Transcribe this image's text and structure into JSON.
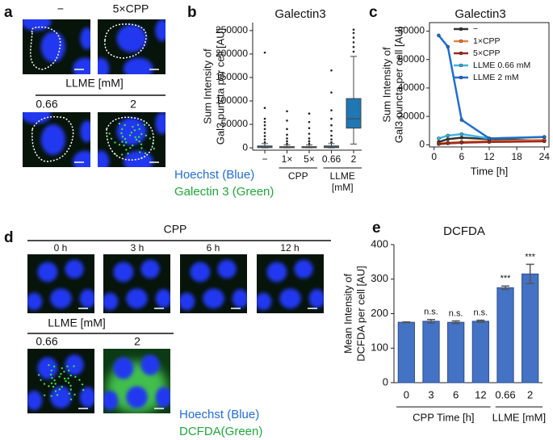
{
  "panel_a": {
    "letter": "a",
    "labels": [
      "−",
      "5×CPP"
    ],
    "group": "LLME [mM]",
    "sublabels": [
      "0.66",
      "2"
    ],
    "legend": [
      "Hoechst (Blue)",
      "Galectin 3 (Green)"
    ]
  },
  "panel_d": {
    "letter": "d",
    "group_top": "CPP",
    "labels": [
      "0 h",
      "3 h",
      "6 h",
      "12 h"
    ],
    "group": "LLME [mM]",
    "sublabels": [
      "0.66",
      "2"
    ],
    "legend": [
      "Hoechst (Blue)",
      "DCFDA(Green)"
    ]
  },
  "chart_data": [
    {
      "type": "box",
      "panel": "b",
      "title": "Galectin3",
      "ylabel": [
        "Sum Intensity of",
        "Gal3 puncta per cell [AU]"
      ],
      "categories": [
        "−",
        "1×",
        "5×",
        "0.66",
        "2"
      ],
      "group_labels": [
        "CPP",
        "LLME",
        "[mM]"
      ],
      "color": "#1f77b4",
      "boxes": [
        {
          "whislo": 0,
          "q1": 500,
          "med": 1500,
          "q3": 4000,
          "whishi": 9000,
          "fliers": [
            12000,
            18000,
            25000,
            32000,
            40000,
            48000,
            55000,
            62000,
            85000,
            203000
          ]
        },
        {
          "whislo": 0,
          "q1": 300,
          "med": 800,
          "q3": 2500,
          "whishi": 6000,
          "fliers": [
            9000,
            14000,
            20000,
            28000,
            40000,
            58000,
            78000
          ]
        },
        {
          "whislo": 0,
          "q1": 300,
          "med": 800,
          "q3": 2500,
          "whishi": 6000,
          "fliers": [
            9000,
            14000,
            20000,
            30000,
            42000,
            55000,
            73000
          ]
        },
        {
          "whislo": 0,
          "q1": 500,
          "med": 1500,
          "q3": 4000,
          "whishi": 9000,
          "fliers": [
            12000,
            18000,
            26000,
            36000,
            48000,
            62000,
            80000,
            118000,
            165000
          ]
        },
        {
          "whislo": 8000,
          "q1": 42000,
          "med": 62000,
          "q3": 105000,
          "whishi": 195000,
          "fliers": [
            205000,
            215000,
            225000,
            235000,
            245000,
            252000
          ]
        }
      ],
      "ylim": [
        -5000,
        267000
      ],
      "yticks": [
        0,
        50000,
        100000,
        150000,
        200000,
        250000
      ]
    },
    {
      "type": "line",
      "panel": "c",
      "title": "Galectin3",
      "ylabel": [
        "Sum Intensity of",
        "Gal3 puncta per cell [AU]"
      ],
      "xlabel": "Time [h]",
      "x": [
        1,
        3,
        6,
        12,
        24
      ],
      "series": [
        {
          "name": "−",
          "color": "#333333",
          "values": [
            2000,
            4000,
            5000,
            4000,
            3000
          ]
        },
        {
          "name": "1×CPP",
          "color": "#e8833a",
          "values": [
            1000,
            1500,
            2000,
            2500,
            3500
          ]
        },
        {
          "name": "5×CPP",
          "color": "#a0281e",
          "values": [
            500,
            1000,
            1500,
            2000,
            2500
          ]
        },
        {
          "name": "LLME 0.66 mM",
          "color": "#3cb4e6",
          "values": [
            4500,
            6500,
            7500,
            4500,
            5500
          ]
        },
        {
          "name": "LLME 2 mM",
          "color": "#1f6fd0",
          "values": [
            77000,
            69000,
            17500,
            4500,
            5500
          ]
        }
      ],
      "xlim": [
        -1,
        25
      ],
      "xticks": [
        0,
        6,
        12,
        18,
        24
      ],
      "ylim": [
        -1500,
        86000
      ],
      "yticks": [
        0,
        20000,
        40000,
        60000,
        80000
      ],
      "legend": "upper right"
    },
    {
      "type": "bar",
      "panel": "e",
      "title": "DCFDA",
      "ylabel": [
        "Mean Intensity of",
        "DCFDA per cell [AU]"
      ],
      "categories": [
        "0",
        "3",
        "6",
        "12",
        "0.66",
        "2"
      ],
      "group_labels": [
        "CPP Time [h]",
        "LLME [mM]"
      ],
      "values": [
        175,
        178,
        175,
        178,
        275,
        315
      ],
      "errors": [
        1,
        5,
        4,
        3,
        5,
        28
      ],
      "annotations": [
        null,
        "n.s.",
        "n.s.",
        "n.s.",
        "***",
        "***"
      ],
      "color": "#4472c4",
      "ylim": [
        0,
        400
      ],
      "yticks": [
        0,
        100,
        200,
        300,
        400
      ]
    }
  ]
}
